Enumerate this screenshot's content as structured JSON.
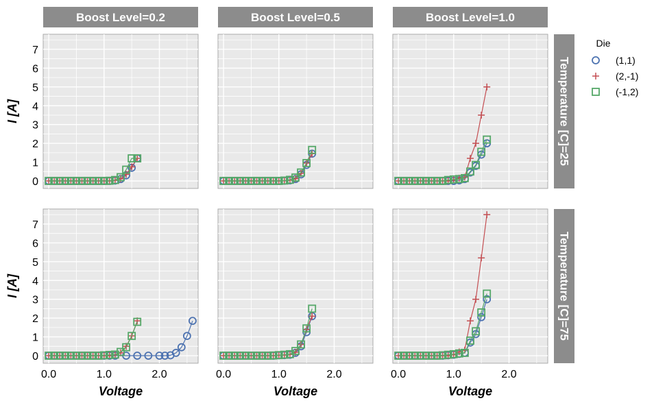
{
  "chart_data": {
    "type": "line",
    "facet_columns": {
      "variable": "Boost Level",
      "labels": [
        "Boost Level=0.2",
        "Boost Level=0.5",
        "Boost Level=1.0"
      ]
    },
    "facet_rows": {
      "variable": "Temperature [C]",
      "labels": [
        "Temperature [C]=25",
        "Temperature [C]=75"
      ]
    },
    "xlabel": "Voltage",
    "ylabel": "I [A]",
    "xlim": [
      -0.1,
      2.7
    ],
    "ylim": [
      -0.4,
      7.8
    ],
    "x_ticks": [
      0.0,
      1.0,
      2.0
    ],
    "x_tick_labels": [
      "0.0",
      "1.0",
      "2.0"
    ],
    "y_ticks": [
      0,
      1,
      2,
      3,
      4,
      5,
      6,
      7
    ],
    "y_tick_labels": [
      "0",
      "1",
      "2",
      "3",
      "4",
      "5",
      "6",
      "7"
    ],
    "grid": true,
    "legend": {
      "title": "Die",
      "placement": "right",
      "entries": [
        "(1,1)",
        "(2,-1)",
        "(-1,2)"
      ]
    },
    "series_styles": [
      {
        "name": "(1,1)",
        "marker": "circle",
        "color": "#4c72b0"
      },
      {
        "name": "(2,-1)",
        "marker": "plus",
        "color": "#c44e52"
      },
      {
        "name": "(-1,2)",
        "marker": "square",
        "color": "#55a868"
      }
    ],
    "panels": [
      {
        "row": 0,
        "col": 0,
        "series": [
          {
            "name": "(1,1)",
            "x": [
              0.0,
              0.1,
              0.2,
              0.3,
              0.4,
              0.5,
              0.6,
              0.7,
              0.8,
              0.9,
              1.0,
              1.1,
              1.2,
              1.3,
              1.4,
              1.5,
              1.6
            ],
            "y": [
              0,
              0,
              0,
              0,
              0,
              0,
              0,
              0,
              0,
              0,
              0,
              0,
              0.02,
              0.1,
              0.3,
              0.7,
              1.2
            ]
          },
          {
            "name": "(2,-1)",
            "x": [
              0.0,
              0.1,
              0.2,
              0.3,
              0.4,
              0.5,
              0.6,
              0.7,
              0.8,
              0.9,
              1.0,
              1.1,
              1.2,
              1.3,
              1.4,
              1.5,
              1.6
            ],
            "y": [
              0,
              0,
              0,
              0,
              0,
              0,
              0,
              0,
              0,
              0,
              0,
              0,
              0.03,
              0.12,
              0.35,
              0.75,
              1.2
            ]
          },
          {
            "name": "(-1,2)",
            "x": [
              0.0,
              0.1,
              0.2,
              0.3,
              0.4,
              0.5,
              0.6,
              0.7,
              0.8,
              0.9,
              1.0,
              1.1,
              1.2,
              1.3,
              1.4,
              1.5,
              1.6
            ],
            "y": [
              0,
              0,
              0,
              0,
              0,
              0,
              0,
              0,
              0,
              0,
              0,
              0.01,
              0.05,
              0.2,
              0.6,
              1.2,
              1.2
            ]
          }
        ]
      },
      {
        "row": 0,
        "col": 1,
        "series": [
          {
            "name": "(1,1)",
            "x": [
              0.0,
              0.1,
              0.2,
              0.3,
              0.4,
              0.5,
              0.6,
              0.7,
              0.8,
              0.9,
              1.0,
              1.1,
              1.2,
              1.3,
              1.4,
              1.5,
              1.6
            ],
            "y": [
              0,
              0,
              0,
              0,
              0,
              0,
              0,
              0,
              0,
              0,
              0,
              0.01,
              0.03,
              0.1,
              0.35,
              0.85,
              1.45
            ]
          },
          {
            "name": "(2,-1)",
            "x": [
              0.0,
              0.1,
              0.2,
              0.3,
              0.4,
              0.5,
              0.6,
              0.7,
              0.8,
              0.9,
              1.0,
              1.1,
              1.2,
              1.3,
              1.4,
              1.5,
              1.6
            ],
            "y": [
              0,
              0,
              0,
              0,
              0,
              0,
              0,
              0,
              0,
              0,
              0,
              0.01,
              0.04,
              0.12,
              0.4,
              0.95,
              1.45
            ]
          },
          {
            "name": "(-1,2)",
            "x": [
              0.0,
              0.1,
              0.2,
              0.3,
              0.4,
              0.5,
              0.6,
              0.7,
              0.8,
              0.9,
              1.0,
              1.1,
              1.2,
              1.3,
              1.4,
              1.5,
              1.6
            ],
            "y": [
              0,
              0,
              0,
              0,
              0,
              0,
              0,
              0,
              0,
              0,
              0,
              0.02,
              0.06,
              0.18,
              0.45,
              0.95,
              1.65
            ]
          }
        ]
      },
      {
        "row": 0,
        "col": 2,
        "series": [
          {
            "name": "(1,1)",
            "x": [
              0.0,
              0.1,
              0.2,
              0.3,
              0.4,
              0.5,
              0.6,
              0.7,
              0.8,
              0.9,
              1.0,
              1.1,
              1.2,
              1.3,
              1.4,
              1.5,
              1.6
            ],
            "y": [
              0,
              0,
              0,
              0,
              0,
              0,
              0,
              0,
              0,
              0,
              0,
              0.03,
              0.1,
              0.45,
              0.8,
              1.4,
              2.0
            ]
          },
          {
            "name": "(2,-1)",
            "x": [
              0.0,
              0.1,
              0.2,
              0.3,
              0.4,
              0.5,
              0.6,
              0.7,
              0.8,
              0.9,
              1.0,
              1.1,
              1.2,
              1.3,
              1.4,
              1.5,
              1.6
            ],
            "y": [
              0,
              0,
              0,
              0,
              0,
              0,
              0,
              0,
              0,
              0,
              0.05,
              0.15,
              0.2,
              1.2,
              2.0,
              3.5,
              5.0
            ]
          },
          {
            "name": "(-1,2)",
            "x": [
              0.0,
              0.1,
              0.2,
              0.3,
              0.4,
              0.5,
              0.6,
              0.7,
              0.8,
              0.9,
              1.0,
              1.1,
              1.2,
              1.3,
              1.4,
              1.5,
              1.6
            ],
            "y": [
              0,
              0,
              0,
              0,
              0,
              0,
              0,
              0,
              0,
              0.05,
              0.08,
              0.1,
              0.15,
              0.5,
              0.85,
              1.55,
              2.2
            ]
          }
        ]
      },
      {
        "row": 1,
        "col": 0,
        "series": [
          {
            "name": "(1,1)",
            "x": [
              0.0,
              0.1,
              0.2,
              0.3,
              0.4,
              0.5,
              0.6,
              0.7,
              0.8,
              0.9,
              1.0,
              1.1,
              1.2,
              1.4,
              1.6,
              1.8,
              2.0,
              2.1,
              2.2,
              2.3,
              2.4,
              2.5,
              2.6
            ],
            "y": [
              0,
              0,
              0,
              0,
              0,
              0,
              0,
              0,
              0,
              0,
              0,
              0,
              0,
              0,
              0,
              0,
              0,
              0,
              0.02,
              0.15,
              0.45,
              1.05,
              1.85
            ]
          },
          {
            "name": "(2,-1)",
            "x": [
              0.0,
              0.1,
              0.2,
              0.3,
              0.4,
              0.5,
              0.6,
              0.7,
              0.8,
              0.9,
              1.0,
              1.1,
              1.2,
              1.3,
              1.4,
              1.5,
              1.6
            ],
            "y": [
              0,
              0,
              0,
              0,
              0,
              0,
              0,
              0,
              0,
              0,
              0,
              0,
              0.05,
              0.15,
              0.5,
              1.05,
              1.85
            ]
          },
          {
            "name": "(-1,2)",
            "x": [
              0.0,
              0.1,
              0.2,
              0.3,
              0.4,
              0.5,
              0.6,
              0.7,
              0.8,
              0.9,
              1.0,
              1.1,
              1.2,
              1.3,
              1.4,
              1.5,
              1.6
            ],
            "y": [
              0,
              0,
              0,
              0,
              0,
              0,
              0,
              0,
              0,
              0,
              0.02,
              0.04,
              0.06,
              0.2,
              0.45,
              1.05,
              1.8
            ]
          }
        ]
      },
      {
        "row": 1,
        "col": 1,
        "series": [
          {
            "name": "(1,1)",
            "x": [
              0.0,
              0.1,
              0.2,
              0.3,
              0.4,
              0.5,
              0.6,
              0.7,
              0.8,
              0.9,
              1.0,
              1.1,
              1.2,
              1.3,
              1.4,
              1.5,
              1.6
            ],
            "y": [
              0,
              0,
              0,
              0,
              0,
              0,
              0,
              0,
              0,
              0,
              0.02,
              0.03,
              0.05,
              0.15,
              0.5,
              1.25,
              2.1
            ]
          },
          {
            "name": "(2,-1)",
            "x": [
              0.0,
              0.1,
              0.2,
              0.3,
              0.4,
              0.5,
              0.6,
              0.7,
              0.8,
              0.9,
              1.0,
              1.1,
              1.2,
              1.3,
              1.4,
              1.5,
              1.6
            ],
            "y": [
              0,
              0,
              0,
              0,
              0,
              0,
              0,
              0,
              0,
              0,
              0.02,
              0.03,
              0.06,
              0.18,
              0.6,
              1.4,
              2.1
            ]
          },
          {
            "name": "(-1,2)",
            "x": [
              0.0,
              0.1,
              0.2,
              0.3,
              0.4,
              0.5,
              0.6,
              0.7,
              0.8,
              0.9,
              1.0,
              1.1,
              1.2,
              1.3,
              1.4,
              1.5,
              1.6
            ],
            "y": [
              0,
              0,
              0,
              0,
              0,
              0,
              0,
              0,
              0,
              0.01,
              0.03,
              0.05,
              0.08,
              0.25,
              0.6,
              1.45,
              2.5
            ]
          }
        ]
      },
      {
        "row": 1,
        "col": 2,
        "series": [
          {
            "name": "(1,1)",
            "x": [
              0.0,
              0.1,
              0.2,
              0.3,
              0.4,
              0.5,
              0.6,
              0.7,
              0.8,
              0.9,
              1.0,
              1.1,
              1.2,
              1.3,
              1.4,
              1.5,
              1.6
            ],
            "y": [
              0,
              0,
              0,
              0,
              0,
              0,
              0,
              0,
              0,
              0.02,
              0.05,
              0.1,
              0.15,
              0.7,
              1.15,
              2.05,
              3.0
            ]
          },
          {
            "name": "(2,-1)",
            "x": [
              0.0,
              0.1,
              0.2,
              0.3,
              0.4,
              0.5,
              0.6,
              0.7,
              0.8,
              0.9,
              1.0,
              1.1,
              1.2,
              1.3,
              1.4,
              1.5,
              1.6
            ],
            "y": [
              0,
              0,
              0,
              0,
              0,
              0,
              0,
              0,
              0,
              0,
              0.05,
              0.2,
              0.3,
              1.85,
              3.0,
              5.2,
              7.5
            ]
          },
          {
            "name": "(-1,2)",
            "x": [
              0.0,
              0.1,
              0.2,
              0.3,
              0.4,
              0.5,
              0.6,
              0.7,
              0.8,
              0.9,
              1.0,
              1.1,
              1.2,
              1.3,
              1.4,
              1.5,
              1.6
            ],
            "y": [
              0,
              0,
              0,
              0,
              0,
              0,
              0,
              0,
              0.02,
              0.05,
              0.08,
              0.12,
              0.15,
              0.8,
              1.3,
              2.3,
              3.3
            ]
          }
        ]
      }
    ]
  }
}
